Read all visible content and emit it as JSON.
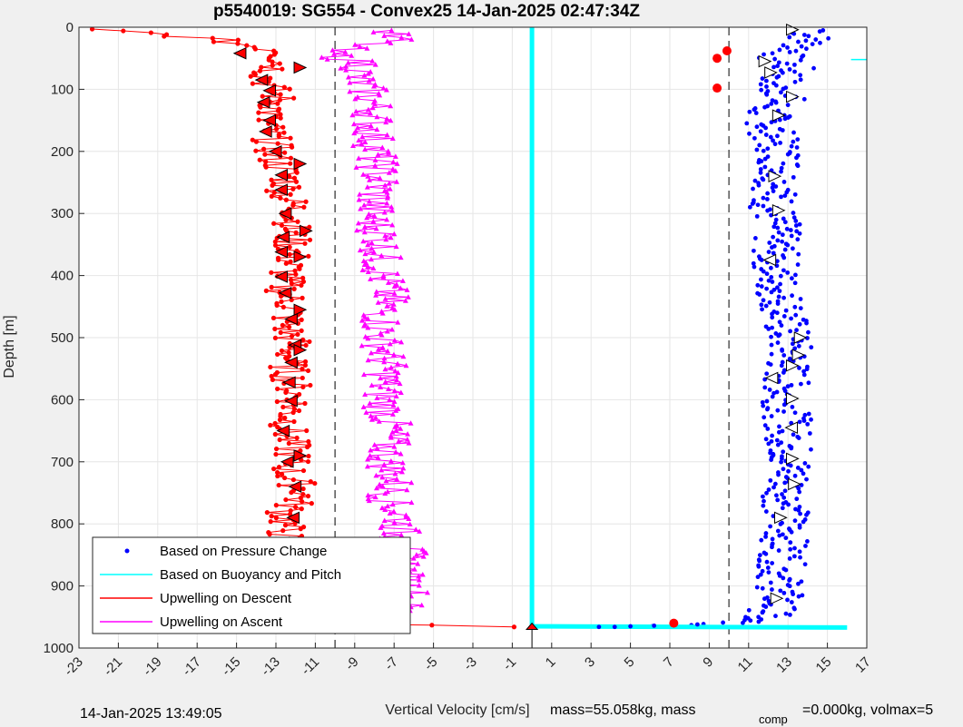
{
  "chart_data": {
    "type": "scatter",
    "title": "p5540019: SG554 - Convex25 14-Jan-2025 02:47:34Z",
    "xlabel": "Vertical Velocity [cm/s]",
    "ylabel": "Depth [m]",
    "xlim": [
      -23,
      17
    ],
    "ylim": [
      0,
      1000
    ],
    "y_reversed": true,
    "grid": true,
    "x_ticks": [
      -23,
      -21,
      -19,
      -17,
      -15,
      -13,
      -11,
      -9,
      -7,
      -5,
      -3,
      -1,
      1,
      3,
      5,
      7,
      9,
      11,
      13,
      15,
      17
    ],
    "y_ticks": [
      0,
      100,
      200,
      300,
      400,
      500,
      600,
      700,
      800,
      900,
      1000
    ],
    "reference_lines_x": [
      -10,
      10
    ],
    "legend_position": "bottom-left",
    "series": [
      {
        "name": "Based on Pressure Change",
        "color": "#0000ff",
        "marker": "dot",
        "depths": [
          5,
          10,
          20,
          35,
          50,
          60,
          70,
          85,
          95,
          110,
          130,
          150,
          180,
          200,
          230,
          260,
          290,
          320,
          350,
          380,
          410,
          450,
          490,
          520,
          560,
          600,
          640,
          680,
          720,
          760,
          800,
          840,
          880,
          920,
          945,
          960,
          965
        ],
        "values": [
          14.8,
          13.9,
          14.2,
          13.5,
          12.4,
          12.9,
          13.3,
          12.6,
          12.1,
          13.1,
          11.9,
          12.0,
          12.3,
          12.6,
          12.7,
          12.4,
          12.2,
          12.5,
          12.3,
          12.4,
          12.4,
          12.8,
          12.9,
          13.1,
          12.9,
          12.9,
          13.0,
          13.1,
          13.1,
          12.9,
          12.9,
          12.8,
          12.6,
          12.6,
          12.1,
          10.5,
          5.5
        ]
      },
      {
        "name": "Based on Buoyancy and Pitch",
        "color": "#00ffff",
        "marker": "line",
        "depths": [
          0,
          100,
          200,
          300,
          400,
          500,
          600,
          700,
          800,
          900,
          965,
          967
        ],
        "values": [
          0,
          0,
          0,
          0,
          0,
          0,
          0,
          0,
          0,
          0,
          0,
          16
        ]
      },
      {
        "name": "Upwelling on Descent",
        "color": "#ff0000",
        "marker": "dot-line",
        "depths": [
          3,
          8,
          20,
          40,
          60,
          80,
          100,
          120,
          150,
          180,
          210,
          240,
          270,
          300,
          330,
          360,
          390,
          420,
          450,
          480,
          510,
          540,
          570,
          600,
          630,
          660,
          690,
          720,
          750,
          780,
          810,
          840,
          870,
          900,
          930,
          960,
          966
        ],
        "values": [
          -23,
          -20,
          -16,
          -12.5,
          -12.8,
          -13.5,
          -13.2,
          -12.8,
          -13.6,
          -13.2,
          -13.1,
          -12.4,
          -12.5,
          -11.9,
          -12.3,
          -12.1,
          -12.4,
          -12.6,
          -12.2,
          -12.5,
          -12.1,
          -12.4,
          -12.2,
          -12.0,
          -12.3,
          -12.4,
          -12.1,
          -12.4,
          -11.5,
          -12.5,
          -12.5,
          -12.6,
          -12.5,
          -12.6,
          -12.3,
          -12.0,
          0
        ]
      },
      {
        "name": "Upwelling on Ascent",
        "color": "#ff00ff",
        "marker": "triangle-line",
        "depths": [
          5,
          20,
          40,
          60,
          80,
          100,
          130,
          160,
          190,
          220,
          250,
          280,
          310,
          340,
          370,
          400,
          430,
          460,
          490,
          520,
          550,
          580,
          610,
          640,
          670,
          700,
          730,
          760,
          790,
          820,
          850,
          880,
          910,
          940,
          960
        ],
        "values": [
          -7.5,
          -7.0,
          -10.5,
          -8.5,
          -9.0,
          -8.4,
          -8.0,
          -8.1,
          -8.0,
          -7.9,
          -7.7,
          -8.0,
          -8.1,
          -7.6,
          -7.7,
          -7.6,
          -7.3,
          -7.6,
          -7.7,
          -7.5,
          -7.4,
          -7.6,
          -7.5,
          -7.2,
          -7.3,
          -7.4,
          -7.0,
          -7.3,
          -6.6,
          -6.8,
          -6.4,
          -6.6,
          -6.2,
          -6.7,
          -9.0
        ]
      }
    ],
    "markers": {
      "descent_triangles_left": [
        [
          -14.8,
          42
        ],
        [
          -13.7,
          85
        ],
        [
          -13.3,
          102
        ],
        [
          -13.6,
          121
        ],
        [
          -13.3,
          150
        ],
        [
          -13.5,
          168
        ],
        [
          -13.0,
          200
        ],
        [
          -12.7,
          238
        ],
        [
          -12.7,
          262
        ],
        [
          -12.5,
          300
        ],
        [
          -12.6,
          338
        ],
        [
          -12.7,
          362
        ],
        [
          -12.7,
          402
        ],
        [
          -12.5,
          428
        ],
        [
          -12.2,
          470
        ],
        [
          -12.0,
          512
        ],
        [
          -12.2,
          540
        ],
        [
          -12.3,
          572
        ],
        [
          -12.2,
          602
        ],
        [
          -12.6,
          650
        ],
        [
          -12.4,
          700
        ],
        [
          -12.0,
          740
        ],
        [
          -12.1,
          790
        ],
        [
          -12.6,
          830
        ],
        [
          -12.5,
          890
        ]
      ],
      "descent_triangles_right": [
        [
          -11.8,
          65
        ],
        [
          -11.8,
          220
        ],
        [
          -11.5,
          328
        ],
        [
          -11.8,
          370
        ],
        [
          -11.8,
          455
        ],
        [
          -11.8,
          520
        ],
        [
          -11.8,
          690
        ]
      ],
      "ascent_triangles_right": [
        [
          13.2,
          4
        ],
        [
          11.8,
          55
        ],
        [
          12.1,
          73
        ],
        [
          13.2,
          112
        ],
        [
          12.5,
          142
        ],
        [
          12.3,
          240
        ],
        [
          12.5,
          295
        ],
        [
          13.6,
          500
        ],
        [
          13.5,
          528
        ],
        [
          13.2,
          545
        ],
        [
          13.2,
          598
        ],
        [
          13.2,
          695
        ],
        [
          13.3,
          736
        ],
        [
          12.6,
          790
        ],
        [
          12.4,
          920
        ]
      ],
      "ascent_triangles_left": [
        [
          12.1,
          375
        ],
        [
          12.2,
          565
        ],
        [
          13.2,
          645
        ]
      ],
      "red_points": [
        [
          9.9,
          38
        ],
        [
          9.4,
          50
        ],
        [
          9.4,
          98
        ],
        [
          7.2,
          960
        ]
      ]
    }
  },
  "footer": {
    "timestamp": "14-Jan-2025 13:49:05",
    "mass_text": "mass=55.058kg, mass",
    "comp_sub": "comp",
    "comp_text": "=0.000kg, volmax=5"
  }
}
